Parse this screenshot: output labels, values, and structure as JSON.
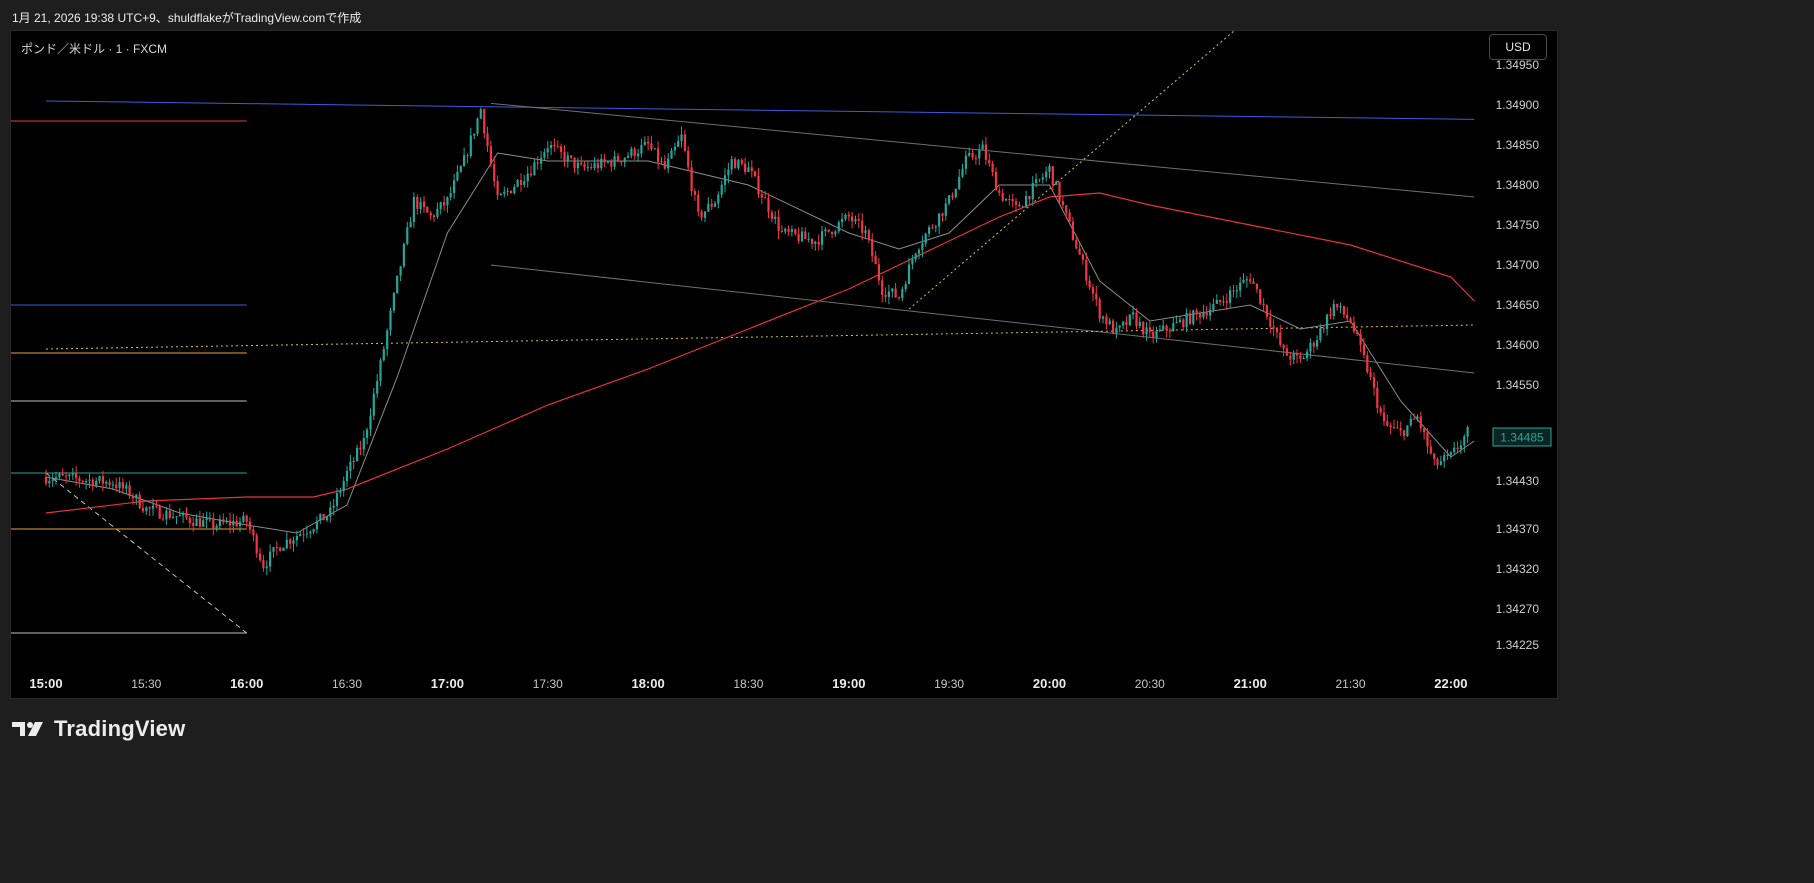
{
  "header": {
    "date": "1月 21, 2026",
    "time": "19:38",
    "timezone": "UTC+9",
    "author_text": "shuldflakeがTradingView.comで作成"
  },
  "chart": {
    "symbol_label": "ポンド／米ドル · 1 · FXCM",
    "currency_button": "USD"
  },
  "colors": {
    "up": "#26a69a",
    "down": "#f23645",
    "ma_slow": "#e5333a",
    "ma_fast": "#8c8c8c",
    "price_badge": "#26a69a"
  },
  "footer": {
    "brand": "TradingView",
    "logo_icon": "tradingview-logo-icon"
  },
  "chart_data": {
    "type": "candlestick",
    "timeframe": "1",
    "x_tick_labels": [
      "15:00",
      "15:30",
      "16:00",
      "16:30",
      "17:00",
      "17:30",
      "18:00",
      "18:30",
      "19:00",
      "19:30",
      "20:00",
      "20:30",
      "21:00",
      "21:30",
      "22:00"
    ],
    "x_bold_ticks": [
      "15:00",
      "16:00",
      "17:00",
      "18:00",
      "19:00",
      "20:00",
      "21:00",
      "22:00"
    ],
    "y_tick_labels": [
      "1.34900",
      "1.34850",
      "1.34800",
      "1.34750",
      "1.34700",
      "1.34650",
      "1.34600",
      "1.34550",
      "1.34430",
      "1.34370",
      "1.34320",
      "1.34270",
      "1.34225"
    ],
    "last_price": "1.34485",
    "price_path": [
      [
        "15:00",
        1.34435
      ],
      [
        "15:10",
        1.34432
      ],
      [
        "15:20",
        1.34428
      ],
      [
        "15:25",
        1.34415
      ],
      [
        "15:30",
        1.34395
      ],
      [
        "15:40",
        1.34385
      ],
      [
        "15:50",
        1.34375
      ],
      [
        "16:00",
        1.3438
      ],
      [
        "16:05",
        1.34325
      ],
      [
        "16:10",
        1.3435
      ],
      [
        "16:20",
        1.34375
      ],
      [
        "16:25",
        1.3439
      ],
      [
        "16:30",
        1.3444
      ],
      [
        "16:35",
        1.3448
      ],
      [
        "16:40",
        1.34575
      ],
      [
        "16:45",
        1.3468
      ],
      [
        "16:50",
        1.3478
      ],
      [
        "16:55",
        1.3476
      ],
      [
        "17:00",
        1.3478
      ],
      [
        "17:05",
        1.3483
      ],
      [
        "17:10",
        1.34895
      ],
      [
        "17:15",
        1.3478
      ],
      [
        "17:20",
        1.348
      ],
      [
        "17:25",
        1.3482
      ],
      [
        "17:30",
        1.3485
      ],
      [
        "17:40",
        1.3482
      ],
      [
        "17:50",
        1.3483
      ],
      [
        "18:00",
        1.3485
      ],
      [
        "18:05",
        1.3482
      ],
      [
        "18:10",
        1.3486
      ],
      [
        "18:15",
        1.3476
      ],
      [
        "18:20",
        1.3478
      ],
      [
        "18:25",
        1.3483
      ],
      [
        "18:30",
        1.3482
      ],
      [
        "18:40",
        1.3474
      ],
      [
        "18:50",
        1.3473
      ],
      [
        "19:00",
        1.3476
      ],
      [
        "19:05",
        1.3474
      ],
      [
        "19:10",
        1.3467
      ],
      [
        "19:15",
        1.3466
      ],
      [
        "19:20",
        1.3472
      ],
      [
        "19:30",
        1.3478
      ],
      [
        "19:35",
        1.3483
      ],
      [
        "19:40",
        1.34845
      ],
      [
        "19:45",
        1.3479
      ],
      [
        "19:50",
        1.3477
      ],
      [
        "20:00",
        1.3482
      ],
      [
        "20:05",
        1.3476
      ],
      [
        "20:10",
        1.347
      ],
      [
        "20:15",
        1.3464
      ],
      [
        "20:20",
        1.34615
      ],
      [
        "20:25",
        1.34635
      ],
      [
        "20:30",
        1.3461
      ],
      [
        "20:40",
        1.3463
      ],
      [
        "20:50",
        1.3465
      ],
      [
        "21:00",
        1.34685
      ],
      [
        "21:05",
        1.3464
      ],
      [
        "21:10",
        1.3459
      ],
      [
        "21:15",
        1.3458
      ],
      [
        "21:20",
        1.3461
      ],
      [
        "21:25",
        1.3465
      ],
      [
        "21:30",
        1.3463
      ],
      [
        "21:35",
        1.3457
      ],
      [
        "21:40",
        1.345
      ],
      [
        "21:45",
        1.3449
      ],
      [
        "21:50",
        1.3451
      ],
      [
        "21:55",
        1.3445
      ],
      [
        "22:00",
        1.3446
      ],
      [
        "22:05",
        1.3449
      ]
    ],
    "ma_slow": [
      [
        "15:00",
        1.3439
      ],
      [
        "15:30",
        1.34405
      ],
      [
        "16:00",
        1.3441
      ],
      [
        "16:20",
        1.3441
      ],
      [
        "16:30",
        1.3442
      ],
      [
        "17:00",
        1.3447
      ],
      [
        "17:30",
        1.34525
      ],
      [
        "18:00",
        1.3457
      ],
      [
        "18:30",
        1.3462
      ],
      [
        "19:00",
        1.3467
      ],
      [
        "19:30",
        1.3473
      ],
      [
        "19:45",
        1.3476
      ],
      [
        "20:00",
        1.34785
      ],
      [
        "20:15",
        1.3479
      ],
      [
        "20:30",
        1.34775
      ],
      [
        "21:00",
        1.3475
      ],
      [
        "21:30",
        1.34725
      ],
      [
        "22:00",
        1.34685
      ],
      [
        "22:07",
        1.34655
      ]
    ],
    "ma_fast": [
      [
        "15:00",
        1.34435
      ],
      [
        "15:20",
        1.3442
      ],
      [
        "15:40",
        1.3439
      ],
      [
        "16:00",
        1.34375
      ],
      [
        "16:15",
        1.34365
      ],
      [
        "16:30",
        1.344
      ],
      [
        "16:45",
        1.3456
      ],
      [
        "17:00",
        1.3474
      ],
      [
        "17:15",
        1.3484
      ],
      [
        "17:30",
        1.3483
      ],
      [
        "18:00",
        1.3483
      ],
      [
        "18:30",
        1.348
      ],
      [
        "19:00",
        1.3474
      ],
      [
        "19:15",
        1.3472
      ],
      [
        "19:30",
        1.3474
      ],
      [
        "19:45",
        1.348
      ],
      [
        "20:00",
        1.348
      ],
      [
        "20:15",
        1.3468
      ],
      [
        "20:30",
        1.3463
      ],
      [
        "21:00",
        1.3465
      ],
      [
        "21:15",
        1.3462
      ],
      [
        "21:30",
        1.3463
      ],
      [
        "21:45",
        1.3453
      ],
      [
        "22:00",
        1.3446
      ],
      [
        "22:07",
        1.3448
      ]
    ],
    "drawings": {
      "horizontal_rays": [
        {
          "price": 1.3488,
          "color": "#f23645"
        },
        {
          "price": 1.3465,
          "color": "#3a5be0"
        },
        {
          "price": 1.3459,
          "color": "#f0a040"
        },
        {
          "price": 1.3453,
          "color": "#bfbfbf"
        },
        {
          "price": 1.3444,
          "color": "#26a69a"
        },
        {
          "price": 1.3437,
          "color": "#f0a040"
        },
        {
          "price": 1.3424,
          "color": "#bfbfbf"
        }
      ],
      "trend_lines": [
        {
          "from": [
            "15:00",
            1.34905
          ],
          "to": [
            "22:07",
            1.34882
          ],
          "color": "#3a5be0",
          "style": "solid"
        },
        {
          "from": [
            "17:13",
            1.34902
          ],
          "to": [
            "22:07",
            1.34785
          ],
          "color": "#6f6f6f",
          "style": "solid"
        },
        {
          "from": [
            "17:13",
            1.347
          ],
          "to": [
            "22:07",
            1.34565
          ],
          "color": "#6f6f6f",
          "style": "solid"
        },
        {
          "from": [
            "15:00",
            1.34595
          ],
          "to": [
            "22:07",
            1.34625
          ],
          "color": "#d9c23a",
          "style": "dotted"
        },
        {
          "from": [
            "19:18",
            1.34645
          ],
          "to": [
            "21:14",
            1.3506
          ],
          "color": "#d9c23a",
          "style": "dotted"
        },
        {
          "from": [
            "15:00",
            1.3444
          ],
          "to": [
            "16:00",
            1.3424
          ],
          "color": "#bfbfbf",
          "style": "dashed"
        }
      ]
    }
  }
}
